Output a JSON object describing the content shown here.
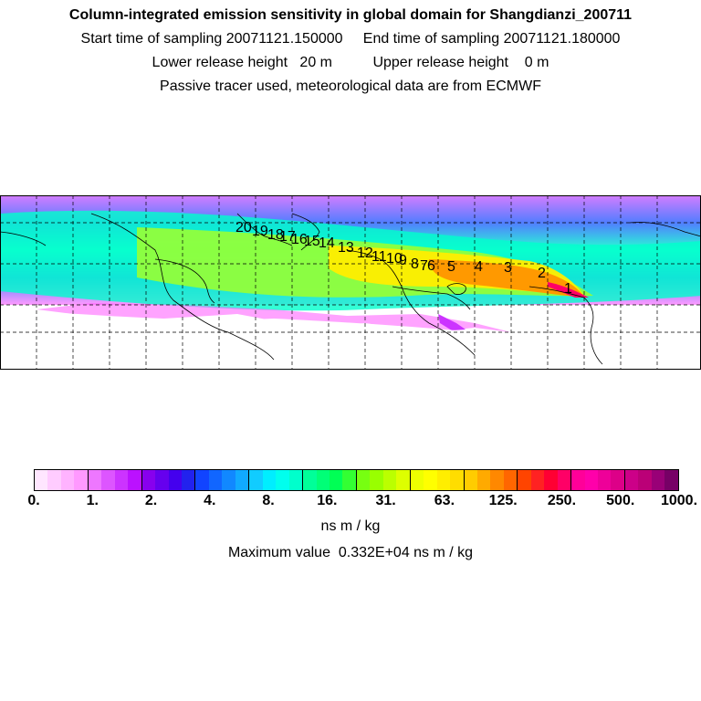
{
  "header": {
    "title": "Column-integrated emission sensitivity in global domain for Shangdianzi_200711",
    "sampling": "Start time of sampling 20071121.150000     End time of sampling 20071121.180000",
    "release": "Lower release height   20 m          Upper release height    0 m",
    "info": "Passive tracer used, meteorological data are from ECMWF"
  },
  "map": {
    "plume_colors": [
      "#ff00ff",
      "#9900ff",
      "#3333ff",
      "#00ffff",
      "#00ff66",
      "#99ff00",
      "#ffff00",
      "#ff9900",
      "#ff0000"
    ],
    "trajectory_labels": [
      "20",
      "19",
      "18",
      "17",
      "16",
      "15",
      "14",
      "13",
      "12",
      "11",
      "10",
      "9",
      "8",
      "7",
      "6",
      "5",
      "4",
      "3",
      "2",
      "1"
    ],
    "icon": "world-map"
  },
  "colorbar": {
    "colors": [
      "#ffe6ff",
      "#ffccff",
      "#ffb3ff",
      "#ff99ff",
      "#ee77ff",
      "#dd55ff",
      "#cc33ff",
      "#bb11ff",
      "#8800ee",
      "#6600ee",
      "#4400ee",
      "#2222ee",
      "#1144ff",
      "#1166ff",
      "#1188ff",
      "#11aaff",
      "#11ccff",
      "#00eeff",
      "#00ffee",
      "#00ffcc",
      "#00ff99",
      "#00ff77",
      "#00ff55",
      "#33ff33",
      "#77ff11",
      "#99ff00",
      "#bbff00",
      "#ddff00",
      "#eeff00",
      "#ffff00",
      "#ffee00",
      "#ffdd00",
      "#ffcc00",
      "#ffaa00",
      "#ff8800",
      "#ff6600",
      "#ff4400",
      "#ff2222",
      "#ff0033",
      "#ff0066",
      "#ff0099",
      "#ff00aa",
      "#ee0099",
      "#dd0088",
      "#cc0088",
      "#bb0077",
      "#990077",
      "#770066"
    ],
    "ticks": [
      "0.",
      "1.",
      "2.",
      "4.",
      "8.",
      "16.",
      "31.",
      "63.",
      "125.",
      "250.",
      "500.",
      "1000."
    ],
    "unit": "ns m / kg",
    "max_text": "Maximum value  0.332E+04 ns m / kg"
  }
}
